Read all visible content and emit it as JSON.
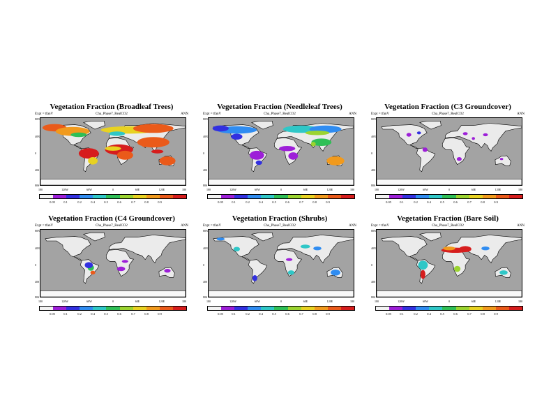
{
  "colors": {
    "ocean": "#a3a3a3",
    "land": "#ebebeb",
    "ice": "#f8f8f8",
    "colorbar": [
      "#f3f3f3",
      "#9d1fd8",
      "#3230e0",
      "#2f8cf1",
      "#2fc7c7",
      "#2fbf56",
      "#9bd430",
      "#e8d221",
      "#f19a1d",
      "#ea5a1a",
      "#d61d1d"
    ]
  },
  "common": {
    "expt": "Expt = tfanV",
    "run": "Cha_Phase7_RealCO2",
    "season": "ANN",
    "lat_labels": [
      "80N",
      "40N",
      "0",
      "40S",
      "80S"
    ],
    "lon_labels": [
      "180",
      "120W",
      "60W",
      "0",
      "60E",
      "120E",
      "180"
    ]
  },
  "panels": [
    {
      "title": "Vegetation Fraction (Broadleaf Trees)",
      "cb_labels": [
        "0.05",
        "0.1",
        "0.2",
        "0.4",
        "0.5",
        "0.6",
        "0.7",
        "0.8",
        "0.9"
      ],
      "regions": [
        {
          "lon": -145,
          "lat": 64,
          "w": 30,
          "h": 10,
          "lvl": 9
        },
        {
          "lon": -100,
          "lat": 54,
          "w": 42,
          "h": 12,
          "lvl": 8
        },
        {
          "lon": -85,
          "lat": 45,
          "w": 20,
          "h": 6,
          "lvl": 5
        },
        {
          "lon": 40,
          "lat": 58,
          "w": 70,
          "h": 10,
          "lvl": 7
        },
        {
          "lon": 100,
          "lat": 62,
          "w": 50,
          "h": 12,
          "lvl": 9
        },
        {
          "lon": 10,
          "lat": 48,
          "w": 20,
          "h": 6,
          "lvl": 4
        },
        {
          "lon": 100,
          "lat": 25,
          "w": 40,
          "h": 14,
          "lvl": 9
        },
        {
          "lon": 15,
          "lat": 5,
          "w": 35,
          "h": 14,
          "lvl": 10
        },
        {
          "lon": 0,
          "lat": 8,
          "w": 20,
          "h": 6,
          "lvl": 7
        },
        {
          "lon": 30,
          "lat": -10,
          "w": 20,
          "h": 12,
          "lvl": 9
        },
        {
          "lon": -60,
          "lat": -5,
          "w": 25,
          "h": 14,
          "lvl": 10
        },
        {
          "lon": -50,
          "lat": -25,
          "w": 12,
          "h": 10,
          "lvl": 7
        },
        {
          "lon": 135,
          "lat": -25,
          "w": 20,
          "h": 12,
          "lvl": 9
        },
        {
          "lon": 110,
          "lat": 0,
          "w": 15,
          "h": 5,
          "lvl": 10
        },
        {
          "lon": 78,
          "lat": 20,
          "w": 8,
          "h": 8,
          "lvl": 9
        }
      ]
    },
    {
      "title": "Vegetation Fraction (Needleleaf Trees)",
      "cb_labels": [
        "0.05",
        "0.1",
        "0.2",
        "0.4",
        "0.5",
        "0.6",
        "0.7",
        "0.8",
        "0.9"
      ],
      "regions": [
        {
          "lon": -110,
          "lat": 58,
          "w": 50,
          "h": 10,
          "lvl": 3
        },
        {
          "lon": -150,
          "lat": 62,
          "w": 20,
          "h": 8,
          "lvl": 2
        },
        {
          "lon": 50,
          "lat": 60,
          "w": 45,
          "h": 10,
          "lvl": 4
        },
        {
          "lon": 110,
          "lat": 60,
          "w": 40,
          "h": 10,
          "lvl": 3
        },
        {
          "lon": 90,
          "lat": 50,
          "w": 30,
          "h": 6,
          "lvl": 6
        },
        {
          "lon": -110,
          "lat": 40,
          "w": 14,
          "h": 8,
          "lvl": 2
        },
        {
          "lon": 15,
          "lat": 8,
          "w": 20,
          "h": 7,
          "lvl": 1
        },
        {
          "lon": 30,
          "lat": -12,
          "w": 12,
          "h": 10,
          "lvl": 1
        },
        {
          "lon": -60,
          "lat": -10,
          "w": 18,
          "h": 12,
          "lvl": 1
        },
        {
          "lon": -55,
          "lat": -30,
          "w": 8,
          "h": 6,
          "lvl": 2
        },
        {
          "lon": 135,
          "lat": -25,
          "w": 22,
          "h": 12,
          "lvl": 8
        },
        {
          "lon": 100,
          "lat": 25,
          "w": 25,
          "h": 10,
          "lvl": 5
        },
        {
          "lon": 80,
          "lat": 20,
          "w": 6,
          "h": 6,
          "lvl": 6
        }
      ]
    },
    {
      "title": "Vegetation Fraction (C3 Groundcover)",
      "cb_labels": [
        "0.05",
        "0.1",
        "0.2",
        "0.4",
        "0.5",
        "0.6",
        "0.7",
        "0.8",
        "0.9"
      ],
      "regions": [
        {
          "lon": -100,
          "lat": 45,
          "w": 6,
          "h": 5,
          "lvl": 1
        },
        {
          "lon": -75,
          "lat": 50,
          "w": 5,
          "h": 4,
          "lvl": 2
        },
        {
          "lon": 40,
          "lat": 48,
          "w": 6,
          "h": 4,
          "lvl": 1
        },
        {
          "lon": 90,
          "lat": 45,
          "w": 6,
          "h": 4,
          "lvl": 1
        },
        {
          "lon": -60,
          "lat": 5,
          "w": 6,
          "h": 6,
          "lvl": 1
        },
        {
          "lon": 25,
          "lat": -20,
          "w": 6,
          "h": 5,
          "lvl": 1
        },
        {
          "lon": 60,
          "lat": 35,
          "w": 4,
          "h": 4,
          "lvl": 1
        },
        {
          "lon": 130,
          "lat": -20,
          "w": 4,
          "h": 3,
          "lvl": 1
        }
      ]
    },
    {
      "title": "Vegetation Fraction (C4 Groundcover)",
      "cb_labels": [
        "0.05",
        "0.1",
        "0.2",
        "0.4",
        "0.5",
        "0.6",
        "0.7",
        "0.8",
        "0.9"
      ],
      "regions": [
        {
          "lon": -55,
          "lat": -12,
          "w": 8,
          "h": 8,
          "lvl": 5
        },
        {
          "lon": -60,
          "lat": -5,
          "w": 10,
          "h": 8,
          "lvl": 2
        },
        {
          "lon": -50,
          "lat": -25,
          "w": 6,
          "h": 5,
          "lvl": 9
        },
        {
          "lon": 20,
          "lat": -15,
          "w": 10,
          "h": 6,
          "lvl": 1
        },
        {
          "lon": 30,
          "lat": 5,
          "w": 8,
          "h": 4,
          "lvl": 1
        },
        {
          "lon": 135,
          "lat": -20,
          "w": 8,
          "h": 5,
          "lvl": 1
        }
      ]
    },
    {
      "title": "Vegetation Fraction (Shrubs)",
      "cb_labels": [
        "0.05",
        "0.1",
        "0.2",
        "0.4",
        "0.5",
        "0.6",
        "0.7",
        "0.8",
        "0.9"
      ],
      "regions": [
        {
          "lon": -110,
          "lat": 38,
          "w": 8,
          "h": 6,
          "lvl": 4
        },
        {
          "lon": -150,
          "lat": 65,
          "w": 10,
          "h": 4,
          "lvl": 3
        },
        {
          "lon": 60,
          "lat": 45,
          "w": 12,
          "h": 5,
          "lvl": 4
        },
        {
          "lon": 90,
          "lat": 40,
          "w": 10,
          "h": 5,
          "lvl": 3
        },
        {
          "lon": 25,
          "lat": -25,
          "w": 8,
          "h": 6,
          "lvl": 4
        },
        {
          "lon": 135,
          "lat": -25,
          "w": 12,
          "h": 8,
          "lvl": 3
        },
        {
          "lon": -65,
          "lat": -40,
          "w": 6,
          "h": 8,
          "lvl": 2
        },
        {
          "lon": 20,
          "lat": 10,
          "w": 8,
          "h": 4,
          "lvl": 1
        }
      ]
    },
    {
      "title": "Vegetation Fraction (Bare Soil)",
      "cb_labels": [
        "0.05",
        "0.1",
        "0.2",
        "0.4",
        "0.5",
        "0.6",
        "0.7",
        "0.8",
        "0.9"
      ],
      "regions": [
        {
          "lon": 15,
          "lat": 35,
          "w": 35,
          "h": 7,
          "lvl": 10
        },
        {
          "lon": 40,
          "lat": 38,
          "w": 15,
          "h": 8,
          "lvl": 10
        },
        {
          "lon": 0,
          "lat": 40,
          "w": 15,
          "h": 5,
          "lvl": 8
        },
        {
          "lon": -65,
          "lat": -5,
          "w": 12,
          "h": 12,
          "lvl": 4
        },
        {
          "lon": -65,
          "lat": -30,
          "w": 6,
          "h": 12,
          "lvl": 10
        },
        {
          "lon": 20,
          "lat": -15,
          "w": 8,
          "h": 8,
          "lvl": 6
        },
        {
          "lon": 90,
          "lat": 40,
          "w": 10,
          "h": 5,
          "lvl": 3
        },
        {
          "lon": 135,
          "lat": -25,
          "w": 10,
          "h": 6,
          "lvl": 4
        }
      ]
    }
  ]
}
